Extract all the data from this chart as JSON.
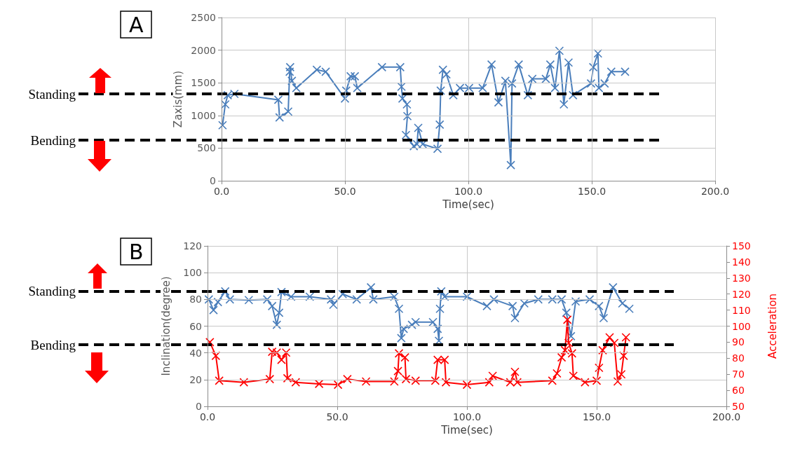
{
  "chart_data": [
    {
      "type": "line",
      "title": "A",
      "xlabel": "Time(sec)",
      "ylabel": "Zaxis(mm)",
      "xlim": [
        0,
        200
      ],
      "xticks": [
        {
          "value": 0,
          "label": "0.0"
        },
        {
          "value": 50,
          "label": "50.0"
        },
        {
          "value": 100,
          "label": "100.0"
        },
        {
          "value": 150,
          "label": "150.0"
        },
        {
          "value": 200,
          "label": "200.0"
        }
      ],
      "ylim": [
        0,
        2500
      ],
      "yticks": [
        0,
        500,
        1000,
        1500,
        2000,
        2500
      ],
      "grid": true,
      "marker": "cross",
      "series": [
        {
          "color": "#4a7ebb",
          "x": [
            0.4,
            1.5,
            2.5,
            5.2,
            23,
            23.5,
            27,
            27.6,
            27.8,
            28.5,
            30.3,
            38.6,
            42.2,
            50,
            50.5,
            52.3,
            54,
            55,
            65,
            72.4,
            72.9,
            73.3,
            75.1,
            75.3,
            74.7,
            77.9,
            79.2,
            79.7,
            81.5,
            87.5,
            88.4,
            88.8,
            89.7,
            91.1,
            93.9,
            96.6,
            100.3,
            105.8,
            109.4,
            112.2,
            115,
            117.2,
            117.7,
            120.4,
            124.1,
            125.9,
            131.4,
            133.2,
            135.1,
            136.9,
            138.7,
            140.6,
            142.4,
            149.7,
            150.6,
            152.5,
            152.9,
            155.2,
            157.9,
            163.5
          ],
          "values": [
            850,
            1170,
            1310,
            1330,
            1240,
            970,
            1060,
            1670,
            1740,
            1530,
            1420,
            1700,
            1670,
            1260,
            1380,
            1600,
            1600,
            1420,
            1740,
            1740,
            1440,
            1260,
            1170,
            990,
            700,
            530,
            560,
            810,
            560,
            490,
            860,
            1380,
            1700,
            1630,
            1310,
            1420,
            1420,
            1420,
            1780,
            1200,
            1530,
            240,
            1490,
            1780,
            1310,
            1560,
            1560,
            1780,
            1420,
            1990,
            1170,
            1810,
            1310,
            1490,
            1740,
            1950,
            1420,
            1490,
            1670,
            1670
          ]
        }
      ],
      "ref_lines": [
        {
          "axis": "y",
          "value": 1330,
          "label": "Standing",
          "color": "#000000",
          "line_style": "dashed"
        },
        {
          "axis": "y",
          "value": 620,
          "label": "Bending",
          "color": "#000000",
          "line_style": "dashed"
        }
      ]
    },
    {
      "type": "line",
      "title": "B",
      "xlabel": "Time(sec)",
      "ylabel": "Inclination(degree)",
      "y2label": "Acceleration",
      "xlim": [
        0,
        200
      ],
      "xticks": [
        {
          "value": 0,
          "label": "0.0"
        },
        {
          "value": 50,
          "label": "50.0"
        },
        {
          "value": 100,
          "label": "100.0"
        },
        {
          "value": 150,
          "label": "150.0"
        },
        {
          "value": 200,
          "label": "200.0"
        }
      ],
      "ylim": [
        0,
        120
      ],
      "yticks": [
        0,
        20,
        40,
        60,
        80,
        100,
        120
      ],
      "y2lim": [
        50,
        150
      ],
      "y2ticks": [
        50,
        60,
        70,
        80,
        90,
        100,
        110,
        120,
        130,
        140,
        150
      ],
      "grid": true,
      "marker": "cross",
      "series": [
        {
          "color": "#4a7ebb",
          "x": [
            0.5,
            2.3,
            4,
            6.8,
            8.6,
            15.9,
            23,
            24.9,
            26.7,
            27.6,
            28.5,
            32.2,
            39.4,
            47.6,
            48.5,
            52.1,
            57.5,
            63,
            63.9,
            72,
            73.8,
            74.7,
            75.6,
            78.8,
            80.2,
            86.9,
            88.7,
            89.2,
            89.6,
            90.1,
            91.4,
            100,
            107.7,
            110.4,
            117.6,
            118.5,
            122.1,
            127.5,
            132.9,
            136.5,
            138.3,
            140.1,
            141.9,
            147.3,
            150.9,
            152.7,
            156.3,
            159.9,
            162.6
          ],
          "values": [
            80,
            72,
            78,
            86,
            80,
            79.5,
            80,
            75,
            61,
            70,
            85.5,
            82,
            82,
            80,
            76,
            84,
            80,
            89,
            80,
            82,
            73,
            51,
            58,
            61,
            63,
            63,
            58,
            49,
            73,
            86,
            82,
            82,
            75,
            80,
            75,
            66,
            77,
            80,
            80,
            80,
            70,
            52.5,
            78.5,
            80,
            75,
            66,
            89,
            77,
            73
          ]
        },
        {
          "color": "#ff0000",
          "axis": "y2",
          "x": [
            0.9,
            3.2,
            4.5,
            14,
            24,
            24.9,
            26.7,
            28.5,
            30.3,
            30.8,
            34,
            43,
            50.3,
            53.9,
            61.1,
            72,
            73.4,
            73.8,
            76.1,
            76.5,
            80.2,
            87.8,
            88.7,
            91.4,
            91.9,
            100,
            108.6,
            109.9,
            116.7,
            118.5,
            119.4,
            132.9,
            134.7,
            136.5,
            137.8,
            138.7,
            139.2,
            140.5,
            141,
            145.5,
            150,
            150.9,
            152.3,
            155,
            156.8,
            158.1,
            159.5,
            160.4,
            161.3
          ],
          "values": [
            90,
            81.5,
            66,
            65,
            67,
            84,
            83.5,
            79,
            83.5,
            67.5,
            65,
            64,
            63.5,
            67,
            65.5,
            65.5,
            72,
            83,
            80.5,
            67,
            66,
            66,
            79,
            79,
            65,
            63.5,
            65,
            69,
            65,
            71.5,
            65,
            66,
            70.5,
            80.5,
            85,
            104,
            89.5,
            83,
            69,
            65,
            66,
            74,
            85,
            93,
            89.5,
            65.5,
            70,
            81.5,
            93
          ]
        }
      ],
      "ref_lines": [
        {
          "axis": "y",
          "value": 86,
          "label": "Standing",
          "color": "#000000",
          "line_style": "dashed"
        },
        {
          "axis": "y",
          "value": 46,
          "label": "Bending",
          "color": "#000000",
          "line_style": "dashed"
        }
      ]
    }
  ]
}
